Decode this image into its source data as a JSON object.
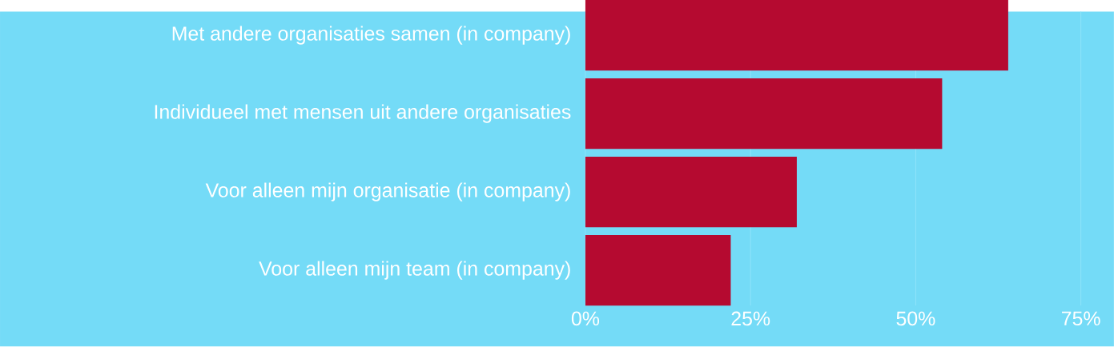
{
  "chart_data": {
    "type": "bar",
    "orientation": "horizontal",
    "categories": [
      "Met andere organisaties samen (in company)",
      "Individueel met mensen uit andere organisaties",
      "Voor alleen mijn organisatie (in company)",
      "Voor alleen mijn team (in company)"
    ],
    "values": [
      64,
      54,
      32,
      22
    ],
    "color": "#b50a30",
    "xlim": [
      0,
      80
    ],
    "xticks": [
      {
        "value": 0,
        "label": "0%"
      },
      {
        "value": 25,
        "label": "25%"
      },
      {
        "value": 50,
        "label": "50%"
      },
      {
        "value": 75,
        "label": "75%"
      }
    ],
    "grid": "x"
  }
}
